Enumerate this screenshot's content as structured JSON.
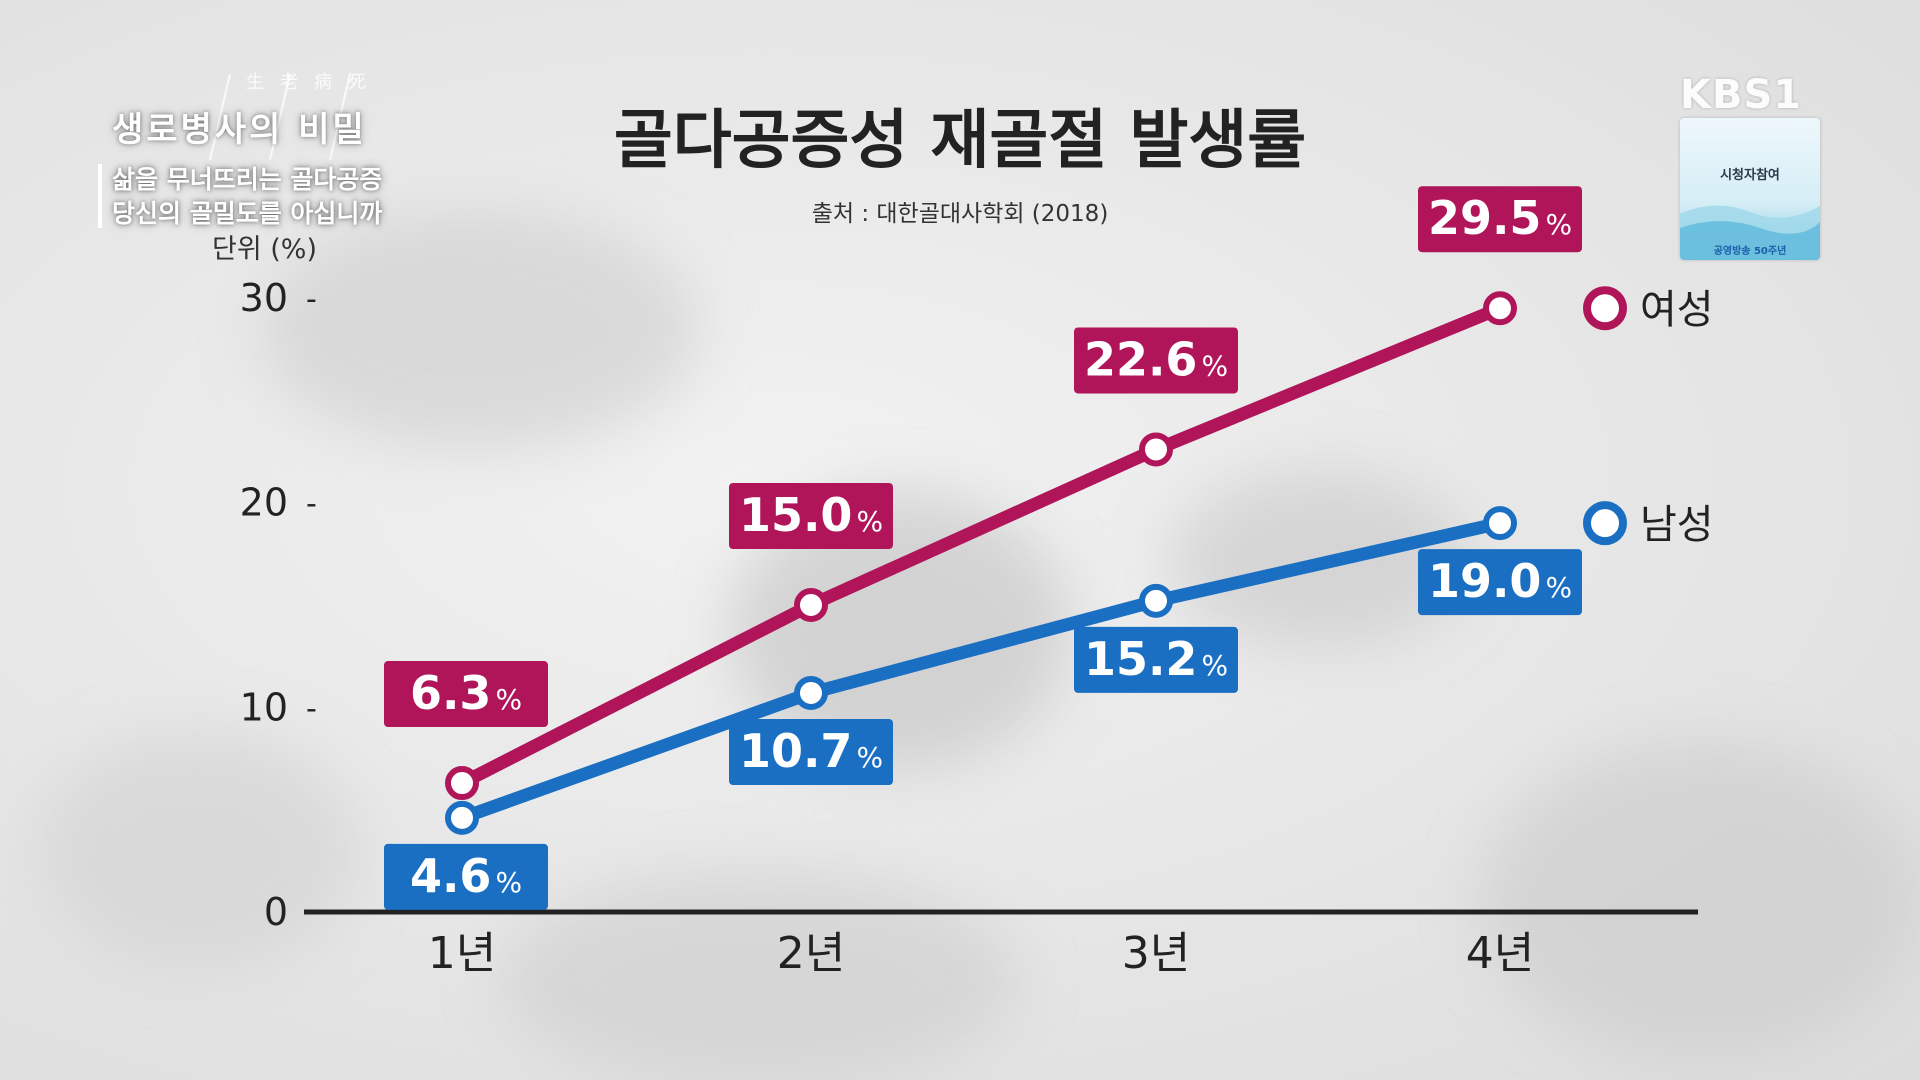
{
  "broadcast": {
    "program_ornament": "生老病死",
    "program_title": "생로병사의 비밀",
    "episode_line1": "삶을 무너뜨리는 골다공증",
    "episode_line2": "당신의 골밀도를 아십니까",
    "channel_logo": "KBS1",
    "badge_label": "시청자참여",
    "badge_footer": "공영방송 50주년"
  },
  "chart_data": {
    "type": "line",
    "title": "골다공증성 재골절 발생률",
    "subtitle": "출처 : 대한골대사학회 (2018)",
    "ylabel": "단위 (%)",
    "categories": [
      "1년",
      "2년",
      "3년",
      "4년"
    ],
    "ylim": [
      0,
      30
    ],
    "yticks": [
      "0",
      "10",
      "20",
      "30"
    ],
    "unit_suffix": "%",
    "legend_placement": "right",
    "grid": false,
    "series": [
      {
        "name": "여성",
        "color": "#b0155a",
        "values": [
          6.3,
          15.0,
          22.6,
          29.5
        ],
        "labels": [
          "6.3",
          "15.0",
          "22.6",
          "29.5"
        ],
        "label_position": "above"
      },
      {
        "name": "남성",
        "color": "#1a6fc3",
        "values": [
          4.6,
          10.7,
          15.2,
          19.0
        ],
        "labels": [
          "4.6",
          "10.7",
          "15.2",
          "19.0"
        ],
        "label_position": "below"
      }
    ]
  }
}
